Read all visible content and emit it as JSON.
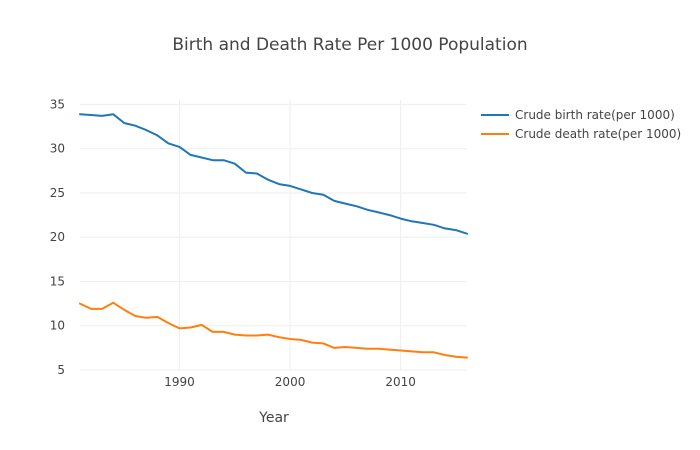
{
  "chart_data": {
    "type": "line",
    "title": "Birth and Death Rate Per 1000 Population",
    "xlabel": "Year",
    "ylabel": "",
    "xlim": [
      1981,
      2016
    ],
    "ylim": [
      5,
      35.5
    ],
    "xticks": [
      1990,
      2000,
      2010
    ],
    "yticks": [
      5,
      10,
      15,
      20,
      25,
      30,
      35
    ],
    "grid": true,
    "legend_position": "top-right",
    "x": [
      1981,
      1982,
      1983,
      1984,
      1985,
      1986,
      1987,
      1988,
      1989,
      1990,
      1991,
      1992,
      1993,
      1994,
      1995,
      1996,
      1997,
      1998,
      1999,
      2000,
      2001,
      2002,
      2003,
      2004,
      2005,
      2006,
      2007,
      2008,
      2009,
      2010,
      2011,
      2012,
      2013,
      2014,
      2015,
      2016
    ],
    "series": [
      {
        "name": "Crude birth rate(per 1000)",
        "color": "#1f77b4",
        "values": [
          33.9,
          33.8,
          33.7,
          33.9,
          32.9,
          32.6,
          32.1,
          31.5,
          30.6,
          30.2,
          29.3,
          29.0,
          28.7,
          28.7,
          28.3,
          27.3,
          27.2,
          26.5,
          26.0,
          25.8,
          25.4,
          25.0,
          24.8,
          24.1,
          23.8,
          23.5,
          23.1,
          22.8,
          22.5,
          22.1,
          21.8,
          21.6,
          21.4,
          21.0,
          20.8,
          20.4
        ]
      },
      {
        "name": "Crude death rate(per 1000)",
        "color": "#ff7f0e",
        "values": [
          12.5,
          11.9,
          11.9,
          12.6,
          11.8,
          11.1,
          10.9,
          11.0,
          10.3,
          9.7,
          9.8,
          10.1,
          9.3,
          9.3,
          9.0,
          8.9,
          8.9,
          9.0,
          8.7,
          8.5,
          8.4,
          8.1,
          8.0,
          7.5,
          7.6,
          7.5,
          7.4,
          7.4,
          7.3,
          7.2,
          7.1,
          7.0,
          7.0,
          6.7,
          6.5,
          6.4
        ]
      }
    ]
  }
}
